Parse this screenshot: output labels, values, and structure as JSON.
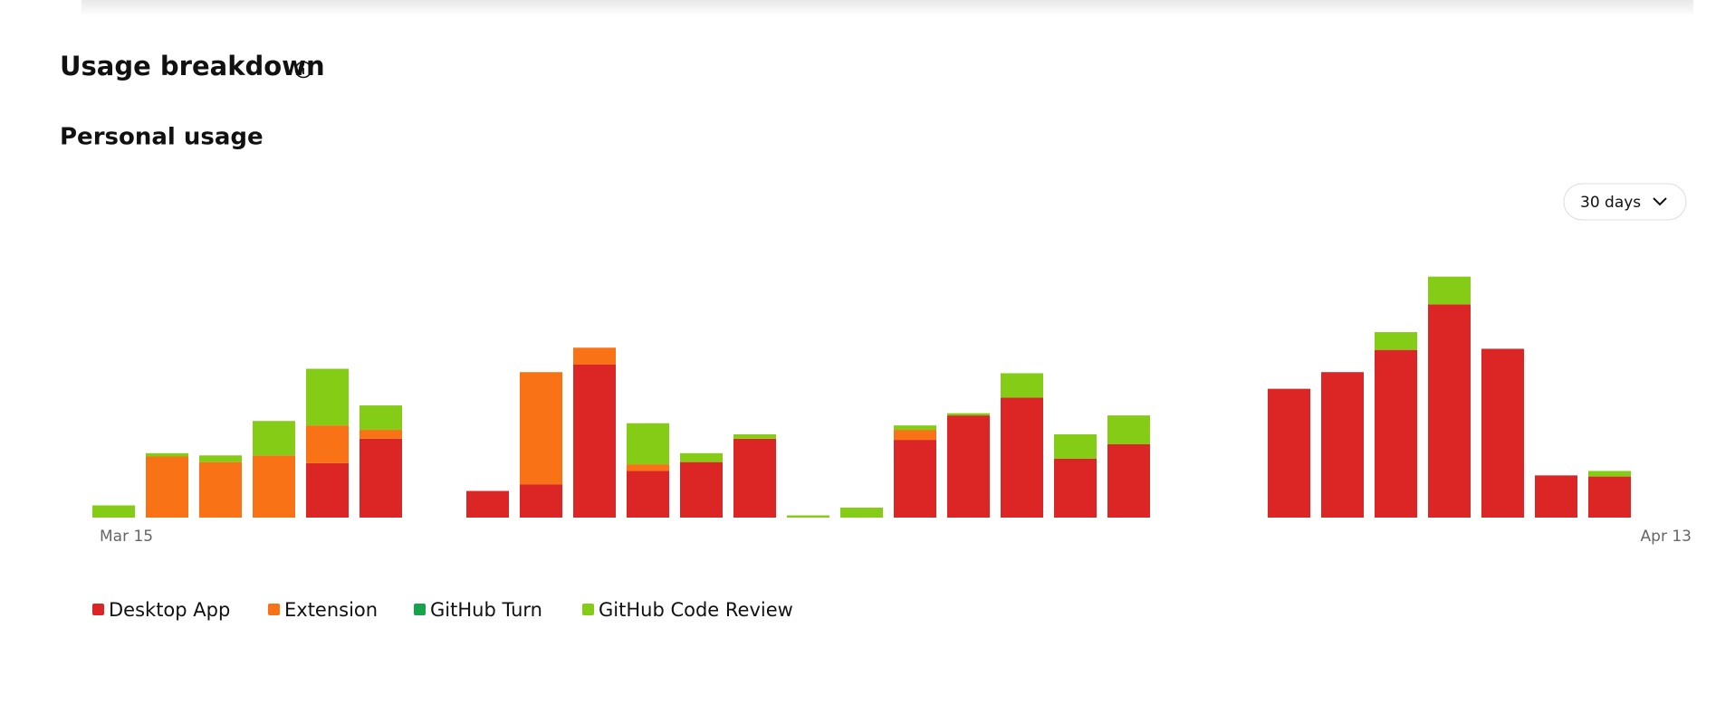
{
  "page": {
    "heading": "Usage breakdown",
    "subheading": "Personal usage",
    "range_selector": "30 days"
  },
  "chart_data": {
    "type": "stacked-bar",
    "categories": [
      "Mar 15",
      null,
      null,
      null,
      null,
      null,
      null,
      null,
      null,
      null,
      null,
      null,
      null,
      null,
      null,
      null,
      null,
      null,
      null,
      null,
      null,
      null,
      null,
      null,
      null,
      null,
      null,
      null,
      null,
      "Apr 13"
    ],
    "ylim": [
      0,
      220
    ],
    "series": [
      {
        "name": "Desktop App",
        "color": "#dc2626",
        "values": [
          0,
          0,
          0,
          0,
          49,
          71,
          0,
          24,
          30,
          138,
          42,
          50,
          71,
          0,
          0,
          70,
          92,
          108,
          53,
          66,
          0,
          0,
          116,
          131,
          151,
          192,
          152,
          38,
          37,
          0
        ]
      },
      {
        "name": "Extension",
        "color": "#f97316",
        "values": [
          0,
          55,
          50,
          56,
          34,
          8,
          0,
          0,
          101,
          15,
          6,
          0,
          0,
          0,
          0,
          9,
          0,
          0,
          0,
          0,
          0,
          0,
          0,
          0,
          0,
          0,
          0,
          0,
          0,
          0
        ]
      },
      {
        "name": "GitHub Turn",
        "color": "#16a34a",
        "values": [
          0,
          0,
          0,
          0,
          0,
          0,
          0,
          0,
          0,
          0,
          0,
          0,
          0,
          0,
          0,
          0,
          0,
          0,
          0,
          0,
          0,
          0,
          0,
          0,
          0,
          0,
          0,
          0,
          0,
          0
        ]
      },
      {
        "name": "GitHub Code Review",
        "color": "#84cc16",
        "values": [
          11,
          3,
          6,
          31,
          51,
          22,
          0,
          0,
          0,
          0,
          37,
          8,
          4,
          2,
          9,
          4,
          2,
          22,
          22,
          26,
          0,
          0,
          0,
          0,
          16,
          25,
          0,
          0,
          5,
          0
        ]
      }
    ]
  }
}
